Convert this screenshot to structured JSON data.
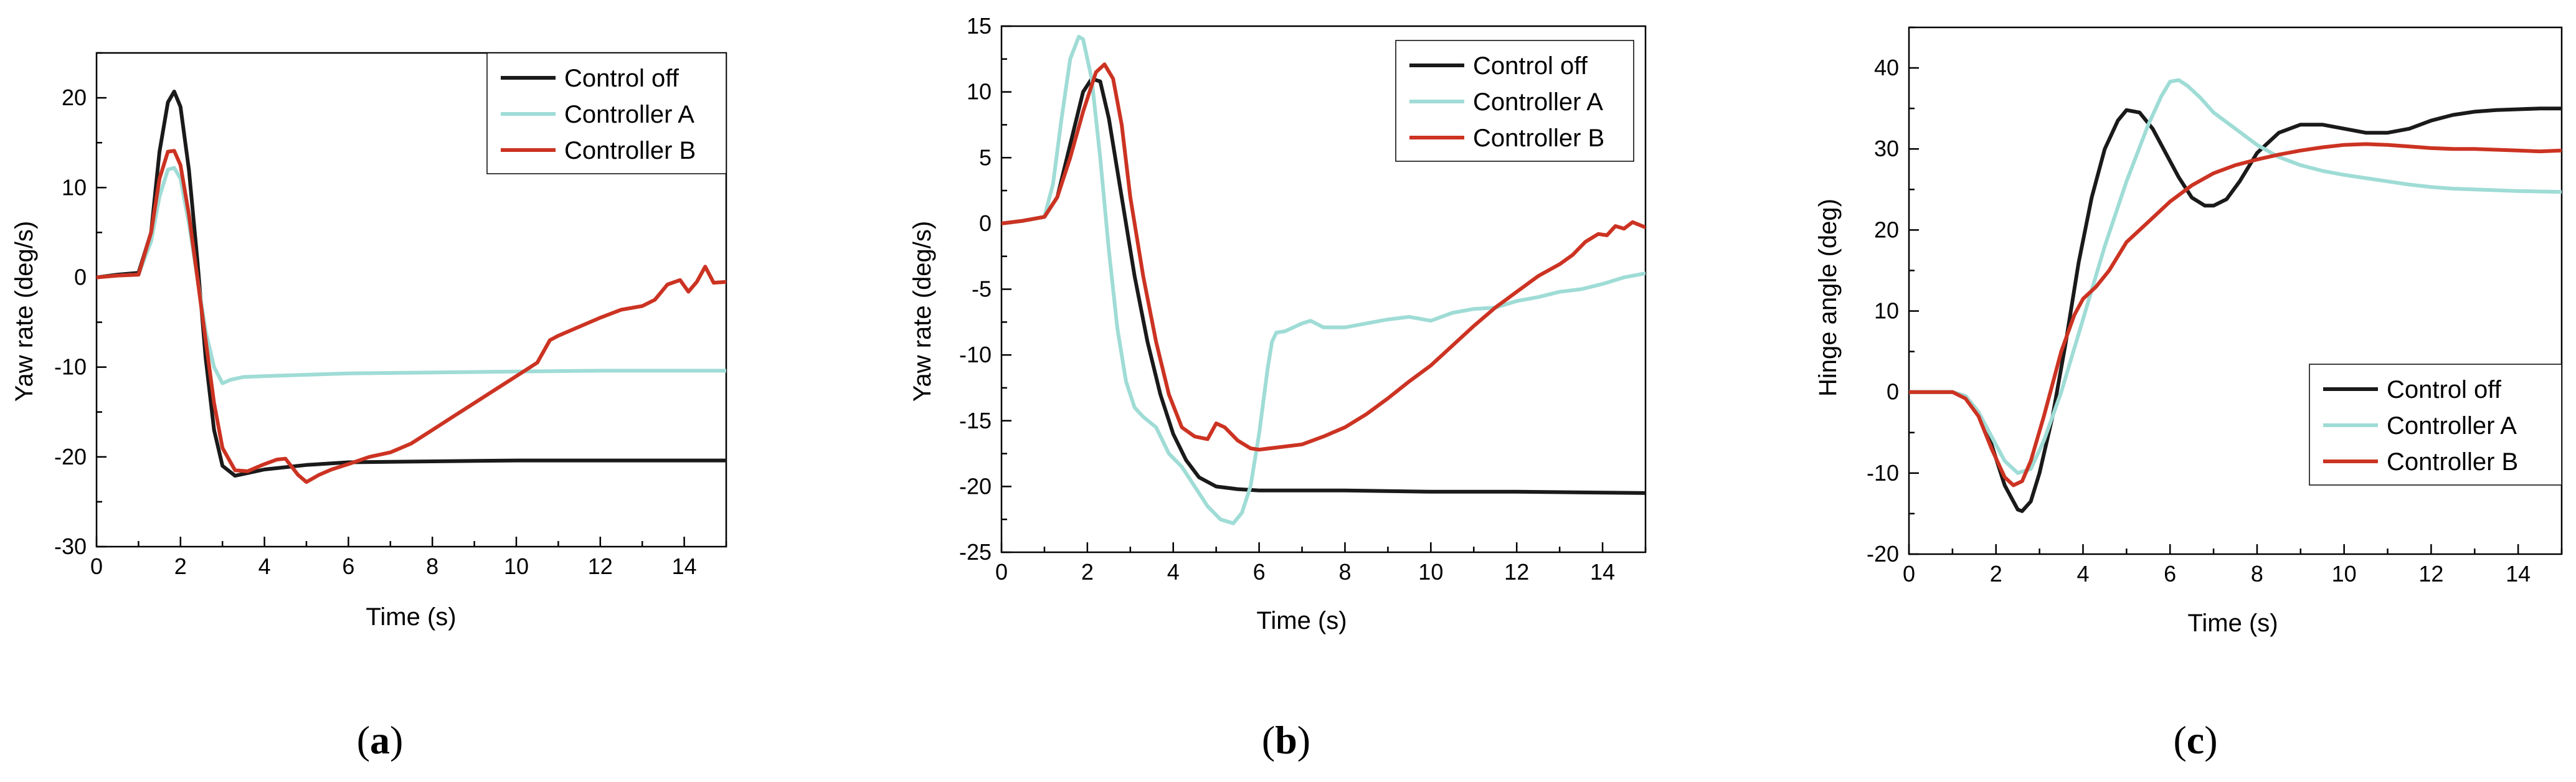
{
  "figure": {
    "labels": {
      "a": "a",
      "b": "b",
      "c": "c"
    }
  },
  "colors": {
    "control_off": "#1a1a1a",
    "controller_a": "#9fdcd6",
    "controller_b": "#cc3322"
  },
  "chart_data": [
    {
      "id": "a",
      "type": "line",
      "panel_label": "a",
      "xlabel": "Time (s)",
      "ylabel": "Yaw rate (deg/s)",
      "xlim": [
        0,
        15
      ],
      "ylim": [
        -30,
        25
      ],
      "xticks": [
        0,
        2,
        4,
        6,
        8,
        10,
        12,
        14
      ],
      "yticks": [
        -30,
        -20,
        -10,
        0,
        10,
        20
      ],
      "xtick_labels": [
        "0",
        "2",
        "4",
        "6",
        "8",
        "10",
        "12",
        "14"
      ],
      "ytick_labels": [
        "-30",
        "-20",
        "-10",
        "0",
        "10",
        "20"
      ],
      "legend_position": "top-right",
      "series": [
        {
          "name": "Control off",
          "color_key": "control_off",
          "x": [
            0,
            0.5,
            1.0,
            1.3,
            1.5,
            1.7,
            1.85,
            2.0,
            2.2,
            2.4,
            2.6,
            2.8,
            3.0,
            3.3,
            3.6,
            4.0,
            5.0,
            6.0,
            8.0,
            10.0,
            12.0,
            15.0
          ],
          "y": [
            0,
            0.3,
            0.5,
            5,
            14,
            19.5,
            20.7,
            19,
            12,
            2,
            -9,
            -17,
            -21,
            -22.1,
            -21.8,
            -21.4,
            -20.9,
            -20.6,
            -20.5,
            -20.4,
            -20.4,
            -20.4
          ]
        },
        {
          "name": "Controller A",
          "color_key": "controller_a",
          "x": [
            0,
            0.5,
            1.0,
            1.3,
            1.5,
            1.7,
            1.85,
            2.0,
            2.2,
            2.4,
            2.6,
            2.8,
            3.0,
            3.2,
            3.5,
            4.0,
            6.0,
            8.0,
            10.0,
            12.0,
            15.0
          ],
          "y": [
            0,
            0.2,
            0.3,
            4,
            9,
            12,
            12.2,
            11,
            6,
            0,
            -6,
            -10,
            -11.8,
            -11.4,
            -11.1,
            -11.0,
            -10.7,
            -10.6,
            -10.5,
            -10.4,
            -10.4
          ]
        },
        {
          "name": "Controller B",
          "color_key": "controller_b",
          "x": [
            0,
            0.5,
            1.0,
            1.3,
            1.5,
            1.7,
            1.85,
            2.0,
            2.2,
            2.4,
            2.6,
            2.8,
            3.0,
            3.3,
            3.6,
            4.0,
            4.3,
            4.5,
            4.8,
            5.0,
            5.3,
            5.6,
            6.0,
            6.5,
            7.0,
            7.5,
            8.0,
            8.5,
            9.0,
            9.5,
            10.0,
            10.5,
            10.8,
            11.0,
            11.5,
            12.0,
            12.5,
            13.0,
            13.3,
            13.6,
            13.9,
            14.1,
            14.3,
            14.5,
            14.7,
            15.0
          ],
          "y": [
            0,
            0.2,
            0.3,
            5,
            11,
            14,
            14.1,
            12.5,
            7,
            0,
            -7,
            -14,
            -19,
            -21.5,
            -21.6,
            -20.8,
            -20.3,
            -20.2,
            -22,
            -22.8,
            -22,
            -21.4,
            -20.8,
            -20,
            -19.5,
            -18.5,
            -17,
            -15.5,
            -14,
            -12.5,
            -11,
            -9.5,
            -7,
            -6.5,
            -5.5,
            -4.5,
            -3.6,
            -3.2,
            -2.5,
            -0.8,
            -0.3,
            -1.6,
            -0.5,
            1.2,
            -0.6,
            -0.5
          ]
        }
      ]
    },
    {
      "id": "b",
      "type": "line",
      "panel_label": "b",
      "xlabel": "Time (s)",
      "ylabel": "Yaw rate (deg/s)",
      "xlim": [
        0,
        15
      ],
      "ylim": [
        -25,
        15
      ],
      "xticks": [
        0,
        2,
        4,
        6,
        8,
        10,
        12,
        14
      ],
      "yticks": [
        -25,
        -20,
        -15,
        -10,
        -5,
        0,
        5,
        10,
        15
      ],
      "xtick_labels": [
        "0",
        "2",
        "4",
        "6",
        "8",
        "10",
        "12",
        "14"
      ],
      "ytick_labels": [
        "-25",
        "-20",
        "-15",
        "-10",
        "-5",
        "0",
        "5",
        "10",
        "15"
      ],
      "legend_position": "top-right",
      "series": [
        {
          "name": "Control off",
          "color_key": "control_off",
          "x": [
            0,
            0.5,
            1.0,
            1.3,
            1.6,
            1.9,
            2.1,
            2.3,
            2.5,
            2.8,
            3.1,
            3.4,
            3.7,
            4.0,
            4.3,
            4.6,
            5.0,
            5.5,
            6.0,
            7.0,
            8.0,
            10.0,
            12.0,
            15.0
          ],
          "y": [
            0,
            0.2,
            0.5,
            2,
            6,
            10,
            11,
            10.8,
            8,
            2,
            -4,
            -9,
            -13,
            -16,
            -18,
            -19.3,
            -20,
            -20.2,
            -20.3,
            -20.3,
            -20.3,
            -20.4,
            -20.4,
            -20.5
          ]
        },
        {
          "name": "Controller A",
          "color_key": "controller_a",
          "x": [
            0,
            0.5,
            1.0,
            1.2,
            1.4,
            1.6,
            1.8,
            1.9,
            2.1,
            2.3,
            2.5,
            2.7,
            2.9,
            3.1,
            3.3,
            3.6,
            3.9,
            4.2,
            4.5,
            4.8,
            5.1,
            5.4,
            5.6,
            5.8,
            6.0,
            6.2,
            6.3,
            6.4,
            6.6,
            6.8,
            7.0,
            7.2,
            7.5,
            8.0,
            8.5,
            9.0,
            9.5,
            10.0,
            10.5,
            11.0,
            11.5,
            12.0,
            12.5,
            13.0,
            13.5,
            14.0,
            14.5,
            15.0
          ],
          "y": [
            0,
            0.2,
            0.5,
            3,
            8,
            12.5,
            14.2,
            14,
            11,
            5,
            -2,
            -8,
            -12,
            -14,
            -14.7,
            -15.5,
            -17.5,
            -18.5,
            -20,
            -21.5,
            -22.5,
            -22.8,
            -22,
            -20,
            -16,
            -11,
            -9,
            -8.3,
            -8.2,
            -7.9,
            -7.6,
            -7.4,
            -7.9,
            -7.9,
            -7.6,
            -7.3,
            -7.1,
            -7.4,
            -6.8,
            -6.5,
            -6.4,
            -5.9,
            -5.6,
            -5.2,
            -5.0,
            -4.6,
            -4.1,
            -3.8
          ]
        },
        {
          "name": "Controller B",
          "color_key": "controller_b",
          "x": [
            0,
            0.5,
            1.0,
            1.3,
            1.6,
            1.9,
            2.2,
            2.4,
            2.6,
            2.8,
            3.0,
            3.3,
            3.6,
            3.9,
            4.2,
            4.5,
            4.8,
            5.0,
            5.2,
            5.5,
            5.8,
            6.0,
            6.5,
            7.0,
            7.5,
            8.0,
            8.5,
            9.0,
            9.5,
            10.0,
            10.5,
            11.0,
            11.5,
            12.0,
            12.5,
            13.0,
            13.3,
            13.6,
            13.9,
            14.1,
            14.3,
            14.5,
            14.7,
            15.0
          ],
          "y": [
            0,
            0.2,
            0.5,
            2,
            5,
            8.5,
            11.5,
            12.1,
            11,
            7.5,
            2,
            -4,
            -9,
            -13,
            -15.5,
            -16.2,
            -16.4,
            -15.2,
            -15.5,
            -16.5,
            -17.1,
            -17.2,
            -17,
            -16.8,
            -16.2,
            -15.5,
            -14.5,
            -13.3,
            -12,
            -10.8,
            -9.3,
            -7.8,
            -6.4,
            -5.2,
            -4.0,
            -3.1,
            -2.4,
            -1.4,
            -0.8,
            -0.9,
            -0.2,
            -0.4,
            0.1,
            -0.3
          ]
        }
      ]
    },
    {
      "id": "c",
      "type": "line",
      "panel_label": "c",
      "xlabel": "Time (s)",
      "ylabel": "Hinge angle (deg)",
      "xlim": [
        0,
        15
      ],
      "ylim": [
        -20,
        45
      ],
      "xticks": [
        0,
        2,
        4,
        6,
        8,
        10,
        12,
        14
      ],
      "yticks": [
        -20,
        -10,
        0,
        10,
        20,
        30,
        40
      ],
      "xtick_labels": [
        "0",
        "2",
        "4",
        "6",
        "8",
        "10",
        "12",
        "14"
      ],
      "ytick_labels": [
        "-20",
        "-10",
        "0",
        "10",
        "20",
        "30",
        "40"
      ],
      "legend_position": "bottom-right",
      "series": [
        {
          "name": "Control off",
          "color_key": "control_off",
          "x": [
            0,
            1.0,
            1.3,
            1.6,
            1.9,
            2.2,
            2.5,
            2.6,
            2.8,
            3.0,
            3.3,
            3.6,
            3.9,
            4.2,
            4.5,
            4.8,
            5.0,
            5.3,
            5.6,
            5.9,
            6.2,
            6.5,
            6.8,
            7.0,
            7.3,
            7.6,
            8.0,
            8.5,
            9.0,
            9.5,
            10.0,
            10.5,
            11.0,
            11.5,
            12.0,
            12.5,
            13.0,
            13.5,
            14.0,
            14.5,
            15.0
          ],
          "y": [
            0,
            0,
            -0.5,
            -2.5,
            -6.5,
            -11.5,
            -14.5,
            -14.7,
            -13.5,
            -10,
            -3,
            6,
            16,
            24,
            30,
            33.5,
            34.8,
            34.5,
            32.5,
            29.5,
            26.5,
            24,
            23,
            23,
            23.8,
            26,
            29.5,
            32,
            33,
            33,
            32.5,
            32,
            32,
            32.5,
            33.5,
            34.2,
            34.6,
            34.8,
            34.9,
            35,
            35
          ]
        },
        {
          "name": "Controller A",
          "color_key": "controller_a",
          "x": [
            0,
            1.0,
            1.3,
            1.6,
            1.9,
            2.2,
            2.5,
            2.8,
            3.1,
            3.5,
            4.0,
            4.5,
            5.0,
            5.5,
            5.8,
            6.0,
            6.2,
            6.4,
            6.7,
            7.0,
            7.5,
            8.0,
            8.5,
            9.0,
            9.5,
            10.0,
            10.5,
            11.0,
            11.5,
            12.0,
            12.5,
            13.0,
            14.0,
            15.0
          ],
          "y": [
            0,
            0,
            -0.5,
            -2.5,
            -5.5,
            -8.5,
            -10,
            -9.5,
            -6,
            0,
            9,
            18,
            26,
            33,
            36.5,
            38.3,
            38.5,
            37.8,
            36.3,
            34.5,
            32.5,
            30.5,
            29,
            28,
            27.3,
            26.8,
            26.4,
            26,
            25.6,
            25.3,
            25.1,
            25,
            24.8,
            24.7
          ]
        },
        {
          "name": "Controller B",
          "color_key": "controller_b",
          "x": [
            0,
            1.0,
            1.3,
            1.6,
            1.9,
            2.2,
            2.4,
            2.6,
            2.8,
            3.1,
            3.5,
            3.8,
            4.0,
            4.3,
            4.6,
            5.0,
            5.5,
            6.0,
            6.5,
            7.0,
            7.5,
            8.0,
            8.5,
            9.0,
            9.5,
            10.0,
            10.5,
            11.0,
            11.5,
            12.0,
            12.5,
            13.0,
            13.5,
            14.0,
            14.5,
            15.0
          ],
          "y": [
            0,
            0,
            -0.8,
            -3,
            -7,
            -10.5,
            -11.5,
            -11,
            -8.5,
            -3,
            5,
            9.5,
            11.5,
            13,
            15,
            18.5,
            21,
            23.5,
            25.5,
            27,
            28,
            28.7,
            29.3,
            29.8,
            30.2,
            30.5,
            30.6,
            30.5,
            30.3,
            30.1,
            30,
            30,
            29.9,
            29.8,
            29.7,
            29.8
          ]
        }
      ]
    }
  ]
}
